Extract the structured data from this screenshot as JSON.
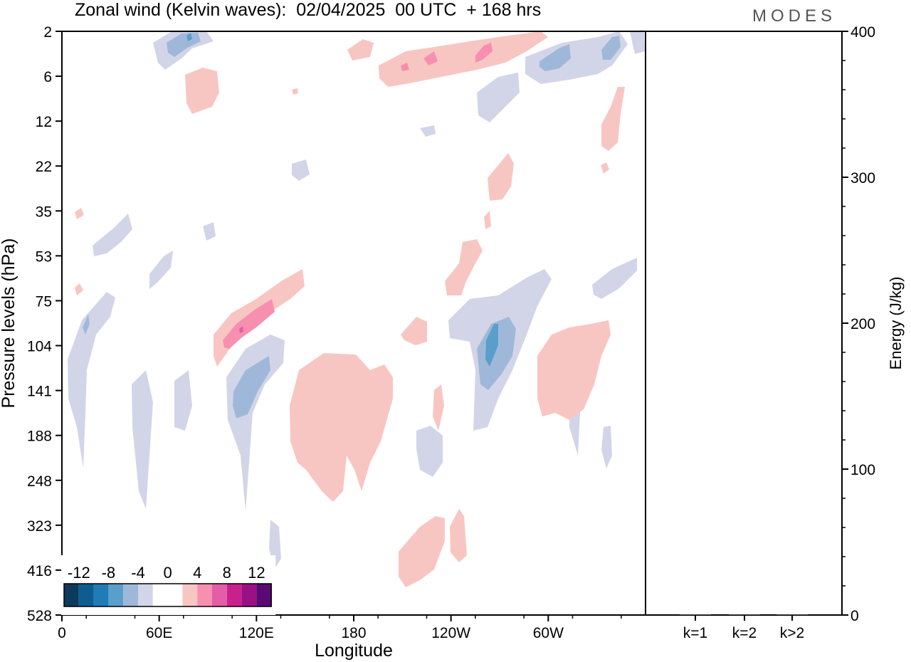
{
  "header": {
    "title": "Zonal wind (Kelvin waves):  02/04/2025  00 UTC  + 168 hrs",
    "brand": "MODES"
  },
  "chart_data": [
    {
      "type": "heatmap",
      "title": "Zonal wind (Kelvin waves):  02/04/2025  00 UTC  + 168 hrs",
      "xlabel": "Longitude",
      "ylabel": "Pressure levels (hPa)",
      "x_ticks": [
        "0",
        "60E",
        "120E",
        "180",
        "120W",
        "60W"
      ],
      "y_ticks": [
        "2",
        "6",
        "12",
        "22",
        "35",
        "53",
        "75",
        "104",
        "141",
        "188",
        "248",
        "323",
        "416",
        "528"
      ],
      "colorbar": {
        "labels": [
          "-12",
          "-8",
          "-4",
          "0",
          "4",
          "8",
          "12"
        ],
        "colors": [
          "#0c3a5c",
          "#0d5d92",
          "#1f7cb6",
          "#5a9ecb",
          "#9fb8d9",
          "#d2d5e8",
          "#ffffff",
          "#ffffff",
          "#f8c6c2",
          "#f78fb0",
          "#e35ea6",
          "#c8218e",
          "#9a1186",
          "#5a0a72"
        ]
      }
    },
    {
      "type": "bar",
      "ylabel": "Energy (J/kg)",
      "categories": [
        "k=1",
        "k=2",
        "k>2"
      ],
      "values": [
        0,
        0,
        0
      ],
      "ylim": [
        0,
        400
      ],
      "y_ticks": [
        "0",
        "100",
        "200",
        "300",
        "400"
      ]
    }
  ]
}
